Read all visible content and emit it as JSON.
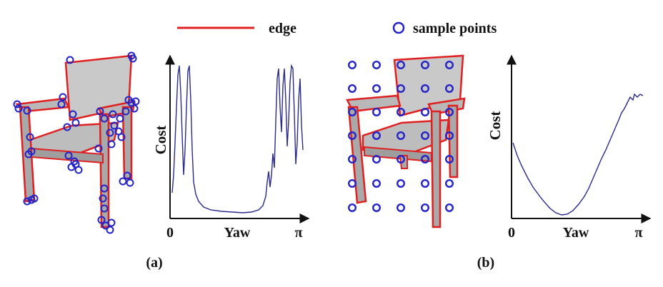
{
  "legend": {
    "edge_label": "edge",
    "sample_label": "sample points",
    "edge_color": "#e02020",
    "sample_color": "#2323c8"
  },
  "panel_a": {
    "caption": "(a)",
    "plot": {
      "ylabel": "Cost",
      "xlabel": "Yaw",
      "x_start": "0",
      "x_end": "π"
    }
  },
  "panel_b": {
    "caption": "(b)",
    "plot": {
      "ylabel": "Cost",
      "xlabel": "Yaw",
      "x_start": "0",
      "x_end": "π"
    }
  },
  "colors": {
    "curve": "#2a2a8c",
    "axis": "#111111",
    "chair_fill": "#c9c9c9",
    "chair_shade": "#a9a9a9"
  },
  "icons": [
    "chair-image-a",
    "chair-image-b",
    "legend-edge-line-icon",
    "legend-sample-point-icon"
  ]
}
